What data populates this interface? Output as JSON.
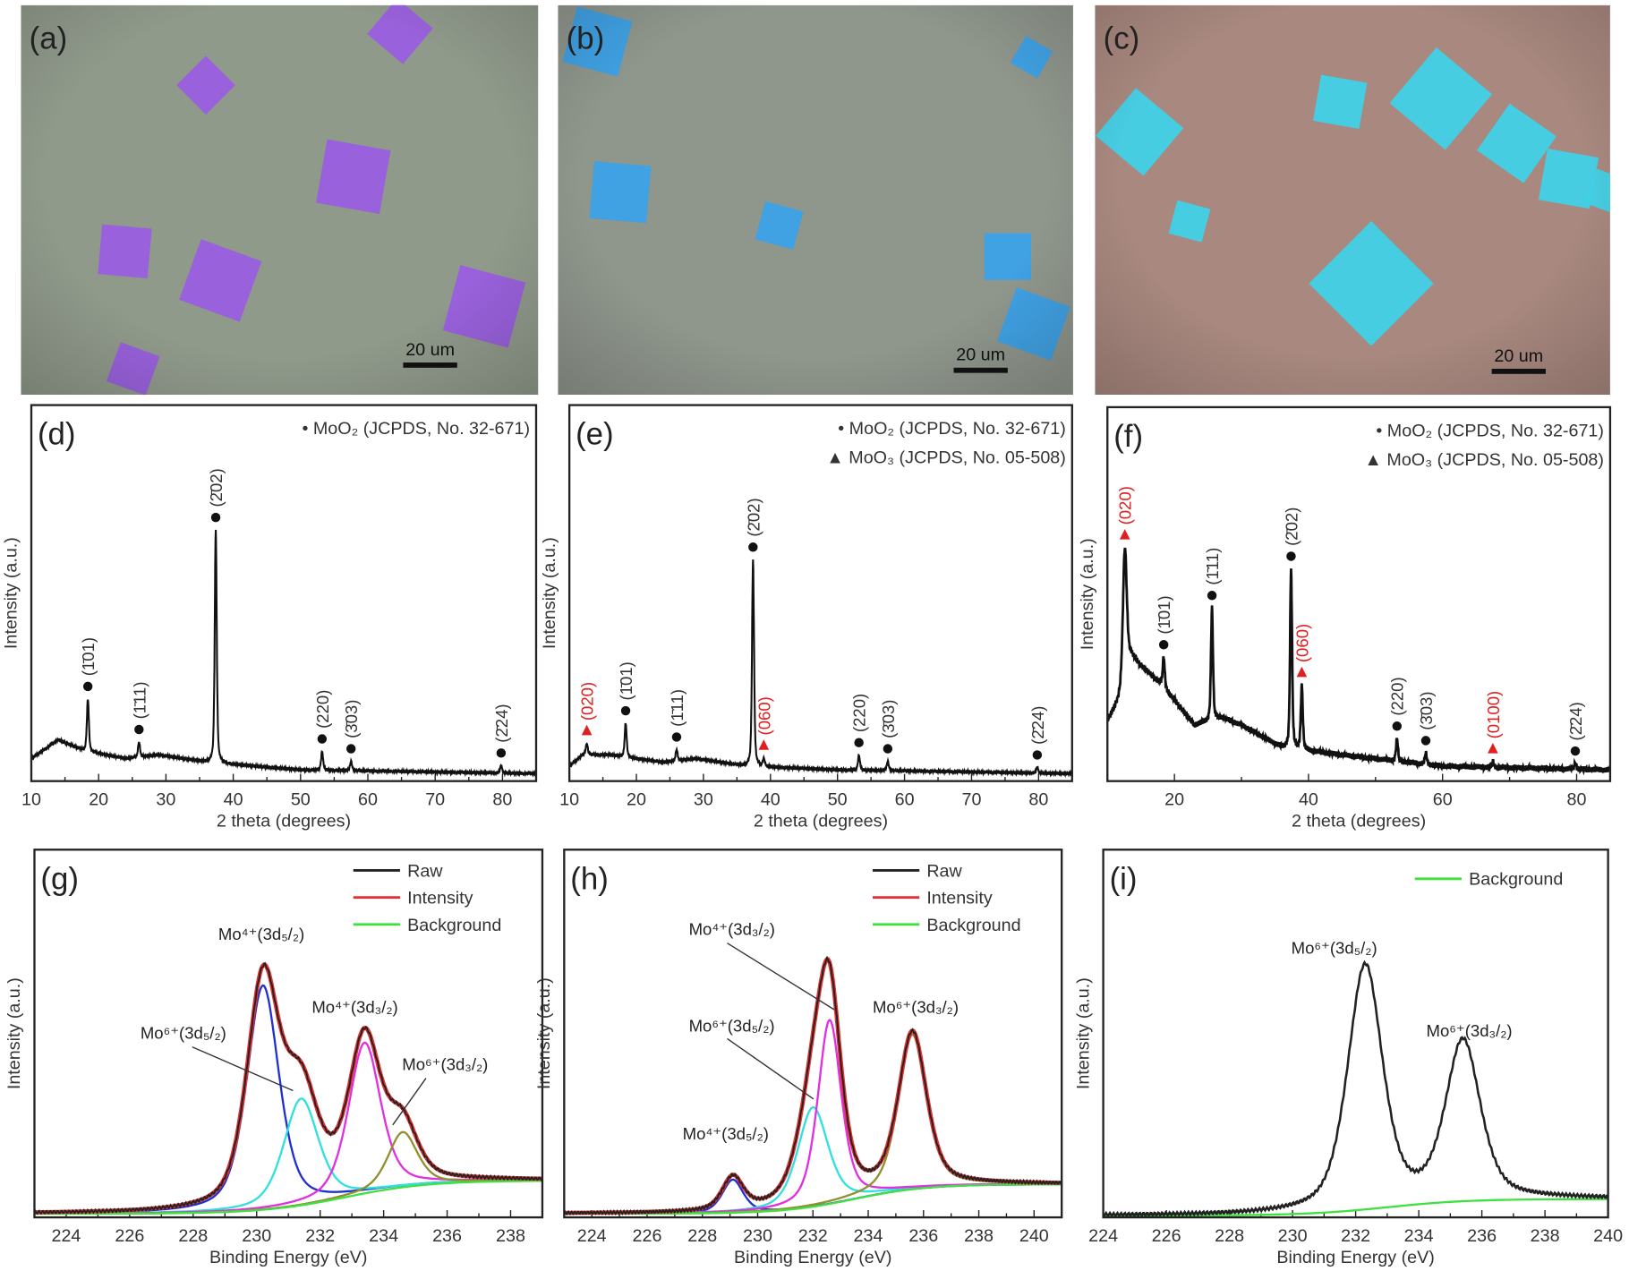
{
  "images": [
    {
      "letter": "(a)",
      "scale_bar": "20 um",
      "background": "#909a8b",
      "flake_color": "#9a5ce2"
    },
    {
      "letter": "(b)",
      "scale_bar": "20 um",
      "background": "#8f968c",
      "flake_color": "#3aa2ea"
    },
    {
      "letter": "(c)",
      "scale_bar": "20 um",
      "background": "#a8887f",
      "flake_color": "#3fd2ea"
    }
  ],
  "colors": {
    "mo_o2": "#111111",
    "mo_o3": "#e02020",
    "raw": "#222222",
    "envelope": "#e03030",
    "background": "#40e040",
    "mo4_52": "#2030d0",
    "mo6_52": "#30e0e0",
    "mo4_32": "#e030e0",
    "mo6_32": "#909030"
  },
  "chart_data": [
    {
      "type": "line",
      "letter": "(d)",
      "xlabel": "2 theta (degrees)",
      "ylabel": "Intensity (a.u.)",
      "xlim": [
        10,
        85
      ],
      "ylim": [
        0,
        1
      ],
      "xticks": [
        "10",
        "20",
        "30",
        "40",
        "50",
        "60",
        "70",
        "80"
      ],
      "legend": [
        "• MoO₂ (JCPDS, No. 32-671)"
      ],
      "baseline": [
        [
          10,
          0.06
        ],
        [
          14,
          0.11
        ],
        [
          18,
          0.08
        ],
        [
          24,
          0.06
        ],
        [
          29,
          0.07
        ],
        [
          36,
          0.05
        ],
        [
          50,
          0.03
        ],
        [
          85,
          0.02
        ]
      ],
      "peaks": [
        {
          "x": 18.4,
          "h": 0.14,
          "label": "(1̄01)",
          "phase": "MoO2"
        },
        {
          "x": 26.0,
          "h": 0.04,
          "label": "(1̄11)",
          "phase": "MoO2"
        },
        {
          "x": 37.4,
          "h": 0.62,
          "label": "(2̄02)",
          "phase": "MoO2"
        },
        {
          "x": 53.2,
          "h": 0.05,
          "label": "(220)",
          "phase": "MoO2"
        },
        {
          "x": 57.5,
          "h": 0.025,
          "label": "(3̄03)",
          "phase": "MoO2"
        },
        {
          "x": 79.8,
          "h": 0.02,
          "label": "(2̄24)",
          "phase": "MoO2"
        }
      ]
    },
    {
      "type": "line",
      "letter": "(e)",
      "xlabel": "2 theta (degrees)",
      "ylabel": "Intensity (a.u.)",
      "xlim": [
        10,
        85
      ],
      "ylim": [
        0,
        1
      ],
      "xticks": [
        "10",
        "20",
        "30",
        "40",
        "50",
        "60",
        "70",
        "80"
      ],
      "legend": [
        "• MoO₂ (JCPDS, No. 32-671)",
        "▲ MoO₃ (JCPDS, No. 05-508)"
      ],
      "baseline": [
        [
          10,
          0.04
        ],
        [
          12,
          0.07
        ],
        [
          16,
          0.07
        ],
        [
          24,
          0.05
        ],
        [
          29,
          0.06
        ],
        [
          36,
          0.04
        ],
        [
          50,
          0.03
        ],
        [
          85,
          0.02
        ]
      ],
      "peaks": [
        {
          "x": 12.6,
          "h": 0.03,
          "label": "(020)",
          "phase": "MoO3"
        },
        {
          "x": 18.4,
          "h": 0.09,
          "label": "(1̄01)",
          "phase": "MoO2"
        },
        {
          "x": 26.0,
          "h": 0.03,
          "label": "(1̄11)",
          "phase": "MoO2"
        },
        {
          "x": 37.4,
          "h": 0.55,
          "label": "(2̄02)",
          "phase": "MoO2"
        },
        {
          "x": 39.0,
          "h": 0.02,
          "label": "(060)",
          "phase": "MoO3"
        },
        {
          "x": 53.2,
          "h": 0.04,
          "label": "(220)",
          "phase": "MoO2"
        },
        {
          "x": 57.5,
          "h": 0.025,
          "label": "(3̄03)",
          "phase": "MoO2"
        },
        {
          "x": 79.8,
          "h": 0.015,
          "label": "(2̄24)",
          "phase": "MoO2"
        }
      ]
    },
    {
      "type": "line",
      "letter": "(f)",
      "xlabel": "2 theta (degrees)",
      "ylabel": "Intensity (a.u.)",
      "xlim": [
        10,
        85
      ],
      "ylim": [
        0,
        1
      ],
      "xticks": [
        "20",
        "40",
        "60",
        "80"
      ],
      "legend": [
        "• MoO₂ (JCPDS, No. 32-671)",
        "▲ MoO₃ (JCPDS, No. 05-508)"
      ],
      "baseline": [
        [
          10,
          0.16
        ],
        [
          12,
          0.22
        ],
        [
          13.5,
          0.33
        ],
        [
          18,
          0.26
        ],
        [
          23,
          0.15
        ],
        [
          27,
          0.17
        ],
        [
          30,
          0.15
        ],
        [
          36,
          0.09
        ],
        [
          45,
          0.07
        ],
        [
          60,
          0.04
        ],
        [
          85,
          0.03
        ]
      ],
      "peaks": [
        {
          "x": 12.6,
          "h": 0.36,
          "label": "(020)",
          "phase": "MoO3"
        },
        {
          "x": 18.4,
          "h": 0.08,
          "label": "(1̄01)",
          "phase": "MoO2"
        },
        {
          "x": 25.6,
          "h": 0.3,
          "label": "(1̄11)",
          "phase": "MoO2"
        },
        {
          "x": 37.4,
          "h": 0.48,
          "label": "(2̄02)",
          "phase": "MoO2"
        },
        {
          "x": 39.0,
          "h": 0.17,
          "label": "(060)",
          "phase": "MoO3"
        },
        {
          "x": 53.2,
          "h": 0.06,
          "label": "(220)",
          "phase": "MoO2"
        },
        {
          "x": 57.5,
          "h": 0.03,
          "label": "(3̄03)",
          "phase": "MoO2"
        },
        {
          "x": 67.5,
          "h": 0.015,
          "label": "(0100)",
          "phase": "MoO3"
        },
        {
          "x": 79.8,
          "h": 0.015,
          "label": "(2̄24)",
          "phase": "MoO2"
        }
      ]
    },
    {
      "type": "line",
      "letter": "(g)",
      "xlabel": "Binding Energy (eV)",
      "ylabel": "Intensity (a.u.)",
      "xlim": [
        223,
        239
      ],
      "ylim": [
        0,
        1
      ],
      "xticks": [
        "224",
        "226",
        "228",
        "230",
        "232",
        "234",
        "236",
        "238"
      ],
      "legend": [
        "Raw",
        "Intensity",
        "Background"
      ],
      "background": {
        "low": 0.01,
        "high": 0.1,
        "center": 232.8
      },
      "components": [
        {
          "name": "Mo⁴⁺(3d₅/₂)",
          "center": 230.2,
          "h": 0.61,
          "fwhm": 1.2,
          "color_key": "mo4_52"
        },
        {
          "name": "Mo⁶⁺(3d₅/₂)",
          "center": 231.4,
          "h": 0.29,
          "fwhm": 1.3,
          "color_key": "mo6_52"
        },
        {
          "name": "Mo⁴⁺(3d₃/₂)",
          "center": 233.4,
          "h": 0.41,
          "fwhm": 1.2,
          "color_key": "mo4_32"
        },
        {
          "name": "Mo⁶⁺(3d₃/₂)",
          "center": 234.6,
          "h": 0.15,
          "fwhm": 1.1,
          "color_key": "mo6_32"
        }
      ]
    },
    {
      "type": "line",
      "letter": "(h)",
      "xlabel": "Binding Energy (eV)",
      "ylabel": "Intensity (a.u.)",
      "xlim": [
        223,
        241
      ],
      "ylim": [
        0,
        1
      ],
      "xticks": [
        "224",
        "226",
        "228",
        "230",
        "232",
        "234",
        "236",
        "238",
        "240"
      ],
      "legend": [
        "Raw",
        "Intensity",
        "Background"
      ],
      "background": {
        "low": 0.01,
        "high": 0.09,
        "center": 233.5
      },
      "components": [
        {
          "name": "Mo⁴⁺(3d₅/₂)",
          "center": 229.1,
          "h": 0.09,
          "fwhm": 0.9,
          "color_key": "mo4_52"
        },
        {
          "name": "Mo⁶⁺(3d₅/₂)",
          "center": 232.0,
          "h": 0.27,
          "fwhm": 1.3,
          "color_key": "mo6_52"
        },
        {
          "name": "Mo⁴⁺(3d₃/₂)",
          "center": 232.6,
          "h": 0.5,
          "fwhm": 1.0,
          "color_key": "mo4_32"
        },
        {
          "name": "Mo⁶⁺(3d₃/₂)",
          "center": 235.6,
          "h": 0.42,
          "fwhm": 1.2,
          "color_key": "mo6_32"
        }
      ]
    },
    {
      "type": "line",
      "letter": "(i)",
      "xlabel": "Binding Energy (eV)",
      "ylabel": "Intensity (a.u.)",
      "xlim": [
        224,
        240
      ],
      "ylim": [
        0,
        1
      ],
      "xticks": [
        "224",
        "226",
        "228",
        "230",
        "232",
        "234",
        "236",
        "238",
        "240"
      ],
      "legend": [
        "Background"
      ],
      "background": {
        "low": 0.005,
        "high": 0.05,
        "center": 233.0
      },
      "components": [
        {
          "name": "Mo⁶⁺(3d₅/₂)",
          "center": 232.3,
          "h": 0.66,
          "fwhm": 1.3,
          "color_key": "raw"
        },
        {
          "name": "Mo⁶⁺(3d₃/₂)",
          "center": 235.4,
          "h": 0.43,
          "fwhm": 1.3,
          "color_key": "raw"
        }
      ]
    }
  ]
}
